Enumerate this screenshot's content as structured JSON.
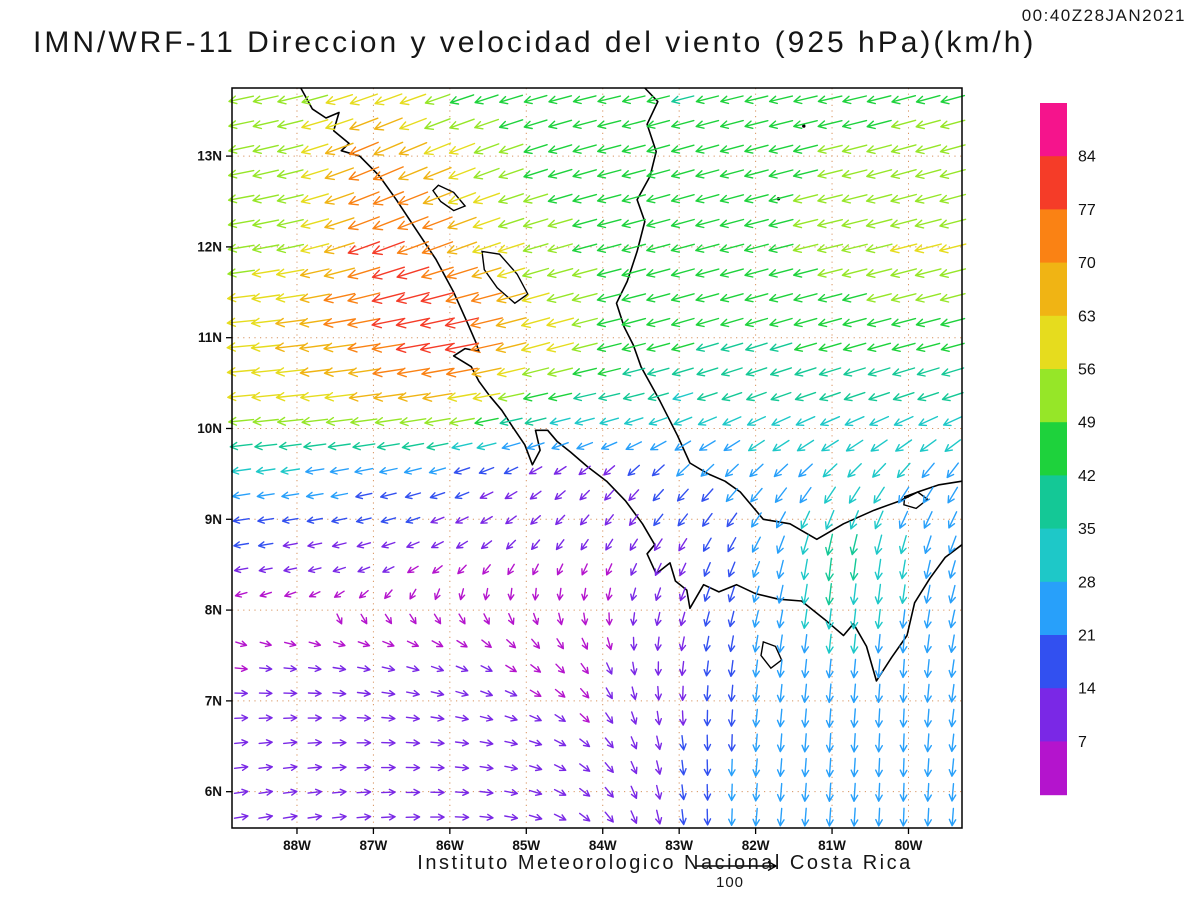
{
  "title": "IMN/WRF-11 Direccion y velocidad del viento (925 hPa)(km/h)",
  "timestamp": "00:40Z28JAN2021",
  "footer": "Instituto Meteorologico Nacional Costa Rica",
  "reference_vector_label": "100",
  "chart_data": {
    "type": "quiver",
    "title": "IMN/WRF-11 Direccion y velocidad del viento (925 hPa)(km/h)",
    "model": "IMN/WRF-11",
    "variable": "Direccion y velocidad del viento",
    "level": "925 hPa",
    "units": "km/h",
    "valid_time": "00:40Z28JAN2021",
    "credit": "Instituto Meteorologico Nacional Costa Rica",
    "reference_speed": 100,
    "lon_range": [
      -88.85,
      -79.3
    ],
    "lat_range": [
      5.6,
      13.75
    ],
    "lon_ticks": {
      "values": [
        -88,
        -87,
        -86,
        -85,
        -84,
        -83,
        -82,
        -81,
        -80
      ],
      "labels": [
        "88W",
        "87W",
        "86W",
        "85W",
        "84W",
        "83W",
        "82W",
        "81W",
        "80W"
      ]
    },
    "lat_ticks": {
      "values": [
        13,
        12,
        11,
        10,
        9,
        8,
        7,
        6
      ],
      "labels": [
        "13N",
        "12N",
        "11N",
        "10N",
        "9N",
        "8N",
        "7N",
        "6N"
      ]
    },
    "colorbar": {
      "thresholds": [
        7,
        14,
        21,
        28,
        35,
        42,
        49,
        56,
        63,
        70,
        77,
        84
      ],
      "colors": [
        "#b414cd",
        "#7a28e6",
        "#3250f0",
        "#28a0fa",
        "#1ec8c8",
        "#14c896",
        "#1ed23c",
        "#96e628",
        "#e6dc1e",
        "#f0b414",
        "#fa8214",
        "#f53c28",
        "#f5148c"
      ],
      "label_values": [
        84,
        77,
        70,
        63,
        56,
        49,
        42,
        35,
        28,
        21,
        14,
        7
      ]
    },
    "wind_grid": {
      "comment": "u eastward km/h, v northward km/h; rows south-to-north matching lats",
      "lons": [
        -88.85,
        -88,
        -87,
        -86,
        -85,
        -84,
        -83,
        -82,
        -81,
        -80,
        -79.3
      ],
      "lats": [
        5.6,
        6.5,
        7.5,
        8.5,
        9.5,
        10.25,
        11,
        12,
        13,
        13.75
      ],
      "u": [
        [
          12,
          12,
          12,
          11,
          9,
          6,
          2,
          -2,
          -2,
          -1,
          -2
        ],
        [
          10,
          11,
          11,
          10,
          8,
          5,
          2,
          -2,
          -2,
          -1,
          -3
        ],
        [
          6,
          7,
          8,
          7,
          5,
          3,
          -2,
          -3,
          -3,
          -2,
          -4
        ],
        [
          -12,
          -10,
          -8,
          -5,
          -3,
          -3,
          -5,
          -8,
          -5,
          -5,
          -8
        ],
        [
          -28,
          -26,
          -24,
          -18,
          -10,
          -8,
          -15,
          -18,
          -20,
          -18,
          -15
        ],
        [
          -55,
          -58,
          -62,
          -60,
          -45,
          -35,
          -32,
          -32,
          -35,
          -35,
          -35
        ],
        [
          -60,
          -65,
          -75,
          -83,
          -65,
          -48,
          -42,
          -40,
          -42,
          -45,
          -45
        ],
        [
          -52,
          -55,
          -75,
          -68,
          -50,
          -46,
          -44,
          -46,
          -50,
          -55,
          -55
        ],
        [
          -50,
          -52,
          -68,
          -55,
          -45,
          -45,
          -42,
          -45,
          -48,
          -50,
          -50
        ],
        [
          -48,
          -50,
          -58,
          -45,
          -42,
          -42,
          -40,
          -42,
          -45,
          -45,
          -45
        ]
      ],
      "v": [
        [
          2,
          2,
          1,
          0,
          -2,
          -6,
          -16,
          -24,
          -26,
          -25,
          -24
        ],
        [
          1,
          1,
          0,
          -1,
          -2,
          -5,
          -14,
          -24,
          -28,
          -26,
          -24
        ],
        [
          -1,
          -1,
          -2,
          -3,
          -4,
          -6,
          -12,
          -22,
          -28,
          -26,
          -24
        ],
        [
          -2,
          -2,
          -3,
          -4,
          -5,
          -6,
          -10,
          -20,
          -42,
          -28,
          -25
        ],
        [
          -4,
          -4,
          -5,
          -6,
          -6,
          -8,
          -15,
          -18,
          -20,
          -22,
          -22
        ],
        [
          -5,
          -6,
          -8,
          -10,
          -10,
          -8,
          -10,
          -12,
          -12,
          -12,
          -12
        ],
        [
          -5,
          -8,
          -12,
          -16,
          -18,
          -12,
          -12,
          -12,
          -12,
          -12,
          -12
        ],
        [
          -8,
          -12,
          -28,
          -25,
          -15,
          -12,
          -12,
          -12,
          -12,
          -14,
          -14
        ],
        [
          -10,
          -14,
          -30,
          -22,
          -15,
          -12,
          -12,
          -12,
          -12,
          -14,
          -14
        ],
        [
          -10,
          -12,
          -20,
          -15,
          -12,
          -10,
          -10,
          -10,
          -10,
          -12,
          -12
        ]
      ]
    },
    "coastlines": [
      [
        [
          -87.95,
          13.75
        ],
        [
          -87.8,
          13.52
        ],
        [
          -87.62,
          13.42
        ],
        [
          -87.45,
          13.48
        ],
        [
          -87.52,
          13.28
        ],
        [
          -87.32,
          13.14
        ],
        [
          -87.42,
          13.06
        ],
        [
          -87.18,
          13.0
        ],
        [
          -86.92,
          12.78
        ],
        [
          -86.7,
          12.52
        ],
        [
          -86.45,
          12.2
        ],
        [
          -86.18,
          11.86
        ],
        [
          -85.95,
          11.5
        ],
        [
          -85.78,
          11.18
        ],
        [
          -85.66,
          10.95
        ],
        [
          -85.62,
          10.85
        ],
        [
          -85.8,
          10.88
        ],
        [
          -85.95,
          10.8
        ],
        [
          -85.72,
          10.68
        ],
        [
          -85.62,
          10.52
        ],
        [
          -85.48,
          10.36
        ],
        [
          -85.32,
          10.2
        ],
        [
          -85.18,
          10.02
        ],
        [
          -85.02,
          9.82
        ],
        [
          -84.92,
          9.6
        ],
        [
          -84.82,
          9.76
        ],
        [
          -84.88,
          9.98
        ],
        [
          -84.72,
          9.98
        ],
        [
          -84.6,
          9.86
        ],
        [
          -84.42,
          9.74
        ],
        [
          -84.2,
          9.58
        ],
        [
          -83.95,
          9.42
        ],
        [
          -83.7,
          9.2
        ],
        [
          -83.48,
          8.95
        ],
        [
          -83.32,
          8.72
        ],
        [
          -83.42,
          8.62
        ],
        [
          -83.3,
          8.4
        ],
        [
          -83.12,
          8.52
        ],
        [
          -83.05,
          8.32
        ],
        [
          -82.9,
          8.22
        ],
        [
          -82.86,
          8.02
        ],
        [
          -82.68,
          8.28
        ],
        [
          -82.48,
          8.2
        ],
        [
          -82.25,
          8.28
        ],
        [
          -82.0,
          8.18
        ],
        [
          -81.7,
          8.12
        ],
        [
          -81.4,
          8.1
        ],
        [
          -81.1,
          7.9
        ],
        [
          -80.85,
          7.72
        ],
        [
          -80.72,
          7.85
        ],
        [
          -80.55,
          7.6
        ],
        [
          -80.42,
          7.22
        ],
        [
          -80.22,
          7.48
        ],
        [
          -80.02,
          7.72
        ],
        [
          -79.92,
          8.08
        ],
        [
          -79.72,
          8.35
        ],
        [
          -79.52,
          8.58
        ],
        [
          -79.3,
          8.72
        ]
      ],
      [
        [
          -79.3,
          9.42
        ],
        [
          -79.6,
          9.38
        ],
        [
          -79.88,
          9.3
        ],
        [
          -80.12,
          9.2
        ],
        [
          -80.45,
          9.1
        ],
        [
          -80.85,
          8.95
        ],
        [
          -81.2,
          8.78
        ],
        [
          -81.55,
          8.95
        ],
        [
          -81.9,
          9.0
        ],
        [
          -82.2,
          9.3
        ],
        [
          -82.4,
          9.42
        ],
        [
          -82.62,
          9.5
        ],
        [
          -82.86,
          9.62
        ],
        [
          -83.02,
          9.92
        ],
        [
          -83.25,
          10.3
        ],
        [
          -83.5,
          10.68
        ],
        [
          -83.6,
          10.92
        ],
        [
          -83.72,
          11.12
        ],
        [
          -83.82,
          11.38
        ],
        [
          -83.68,
          11.62
        ],
        [
          -83.55,
          11.95
        ],
        [
          -83.45,
          12.28
        ],
        [
          -83.55,
          12.52
        ],
        [
          -83.38,
          12.78
        ],
        [
          -83.3,
          13.05
        ],
        [
          -83.42,
          13.35
        ],
        [
          -83.28,
          13.6
        ],
        [
          -83.45,
          13.75
        ]
      ]
    ],
    "lakes": [
      [
        [
          -85.58,
          11.95
        ],
        [
          -85.35,
          11.92
        ],
        [
          -85.12,
          11.7
        ],
        [
          -84.98,
          11.48
        ],
        [
          -85.15,
          11.38
        ],
        [
          -85.38,
          11.55
        ],
        [
          -85.55,
          11.75
        ]
      ],
      [
        [
          -86.15,
          12.68
        ],
        [
          -85.95,
          12.6
        ],
        [
          -85.8,
          12.45
        ],
        [
          -85.95,
          12.4
        ],
        [
          -86.12,
          12.5
        ],
        [
          -86.22,
          12.62
        ]
      ],
      [
        [
          -81.9,
          7.65
        ],
        [
          -81.74,
          7.6
        ],
        [
          -81.66,
          7.45
        ],
        [
          -81.8,
          7.36
        ],
        [
          -81.93,
          7.5
        ]
      ],
      [
        [
          -80.05,
          9.25
        ],
        [
          -79.88,
          9.3
        ],
        [
          -79.75,
          9.22
        ],
        [
          -79.9,
          9.12
        ],
        [
          -80.06,
          9.16
        ]
      ]
    ],
    "islands": [
      [
        -81.7,
        12.53
      ],
      [
        -81.37,
        13.33
      ]
    ]
  }
}
